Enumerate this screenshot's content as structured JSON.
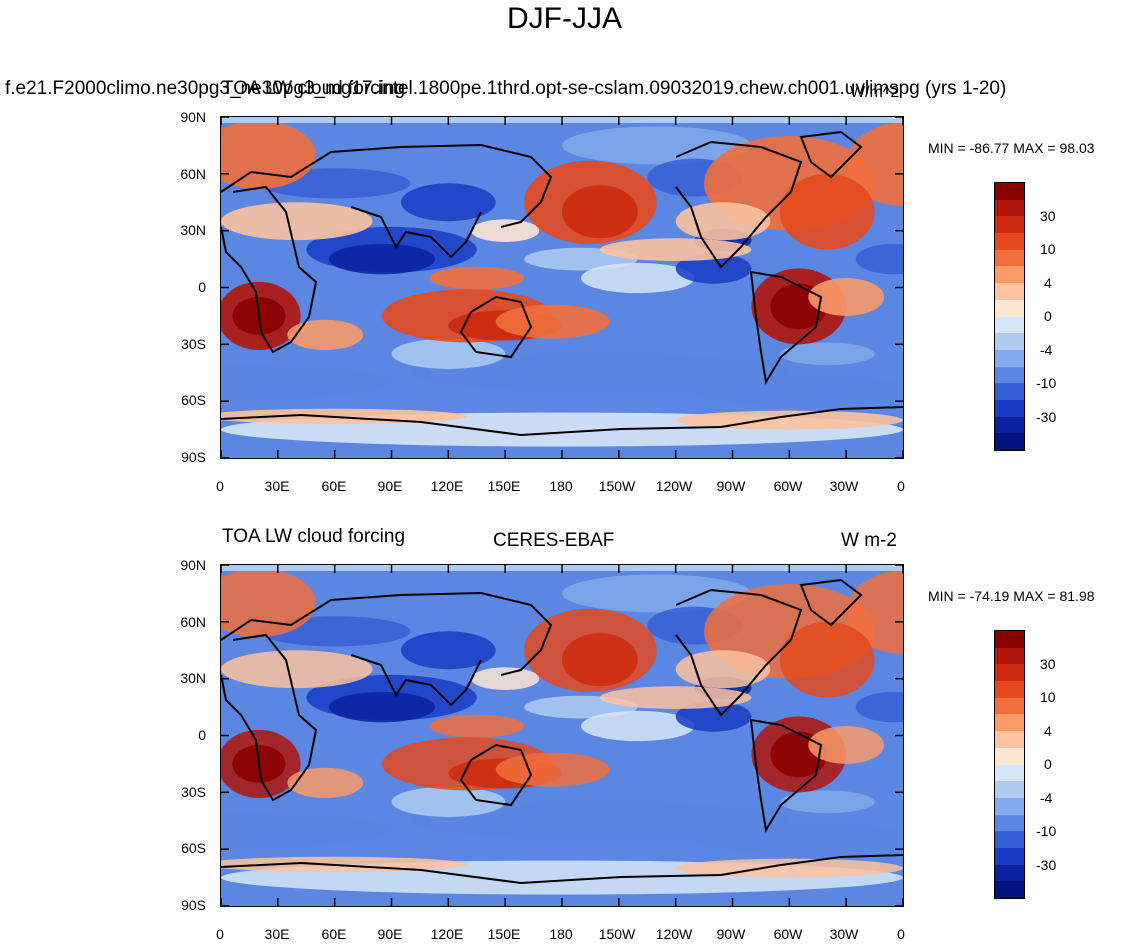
{
  "title": "DJF-JJA",
  "panels": [
    {
      "left_title": "f.e21.F2000climo.ne30pg3_ne30pg3_mg17.intel.1800pe.1thrd.opt-se-cslam.09032019.chew.ch001.uvlimspg (yrs 1-20)",
      "center_title": "TOA LW cloud forcing",
      "right_title": "W/m^2",
      "stats": "MIN = -86.77 MAX =  98.03"
    },
    {
      "left_title": "TOA LW cloud forcing",
      "center_title": "CERES-EBAF",
      "right_title": "W m-2",
      "stats": "MIN = -74.19 MAX =  81.98"
    }
  ],
  "lat_labels": [
    "90N",
    "60N",
    "30N",
    "0",
    "30S",
    "60S",
    "90S"
  ],
  "lon_labels": [
    "0",
    "30E",
    "60E",
    "90E",
    "120E",
    "150E",
    "180",
    "150W",
    "120W",
    "90W",
    "60W",
    "30W",
    "0"
  ],
  "colorbar": {
    "labels": [
      "30",
      "10",
      "4",
      "0",
      "-4",
      "-10",
      "-30"
    ],
    "colors": [
      "#8b0000",
      "#b0150a",
      "#cc2a0e",
      "#e44a1f",
      "#f06f3c",
      "#f89a6a",
      "#fbc29f",
      "#fde5d2",
      "#d6e6f8",
      "#aecbf2",
      "#83aaea",
      "#5b86e2",
      "#3760d6",
      "#1a3cc4",
      "#0a22a0",
      "#001480"
    ]
  }
}
